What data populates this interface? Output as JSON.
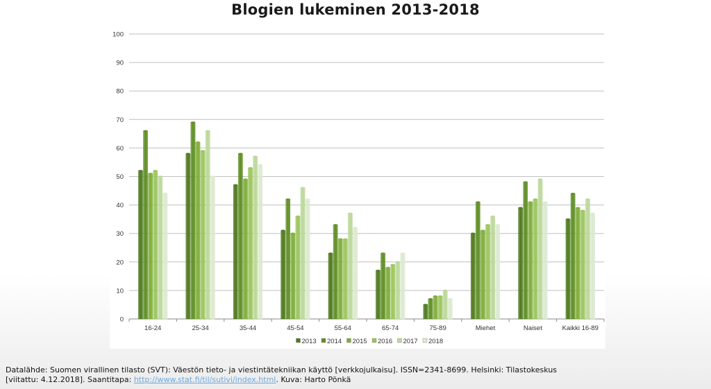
{
  "page": {
    "title": "Blogien lukeminen 2013-2018"
  },
  "footer": {
    "line1": "Datalähde: Suomen virallinen tilasto (SVT): Väestön tieto- ja viestintätekniikan käyttö [verkkojulkaisu]. ISSN=2341-8699. Helsinki: Tilastokeskus",
    "line2_prefix": "[viitattu: 4.12.2018]. Saantitapa: ",
    "link": "http://www.stat.fi/til/sutivi/index.html",
    "line2_suffix": ". Kuva: Harto Pönkä"
  },
  "chart_data": {
    "type": "bar",
    "title": "Blogien lukeminen 2013-2018",
    "xlabel": "",
    "ylabel": "",
    "ylim": [
      0,
      100
    ],
    "yticks": [
      0,
      10,
      20,
      30,
      40,
      50,
      60,
      70,
      80,
      90,
      100
    ],
    "grid": true,
    "legend_position": "bottom",
    "categories": [
      "16-24",
      "25-34",
      "35-44",
      "45-54",
      "55-64",
      "65-74",
      "75-89",
      "Miehet",
      "Naiset",
      "Kaikki 16-89"
    ],
    "series": [
      {
        "name": "2013",
        "color": "#4f7a1f",
        "values": [
          52,
          58,
          47,
          31,
          23,
          17,
          5,
          30,
          39,
          35
        ]
      },
      {
        "name": "2014",
        "color": "#5f8f25",
        "values": [
          66,
          69,
          58,
          42,
          33,
          23,
          7,
          41,
          48,
          44
        ]
      },
      {
        "name": "2015",
        "color": "#7fae3a",
        "values": [
          51,
          62,
          49,
          30,
          28,
          18,
          8,
          31,
          41,
          39
        ]
      },
      {
        "name": "2016",
        "color": "#9cc55f",
        "values": [
          52,
          59,
          53,
          36,
          28,
          19,
          8,
          33,
          42,
          38
        ]
      },
      {
        "name": "2017",
        "color": "#bcd89a",
        "values": [
          50,
          66,
          57,
          46,
          37,
          20,
          10,
          36,
          49,
          42
        ]
      },
      {
        "name": "2018",
        "color": "#dcead0",
        "values": [
          44,
          50,
          54,
          42,
          32,
          23,
          7,
          33,
          41,
          37
        ]
      }
    ]
  }
}
